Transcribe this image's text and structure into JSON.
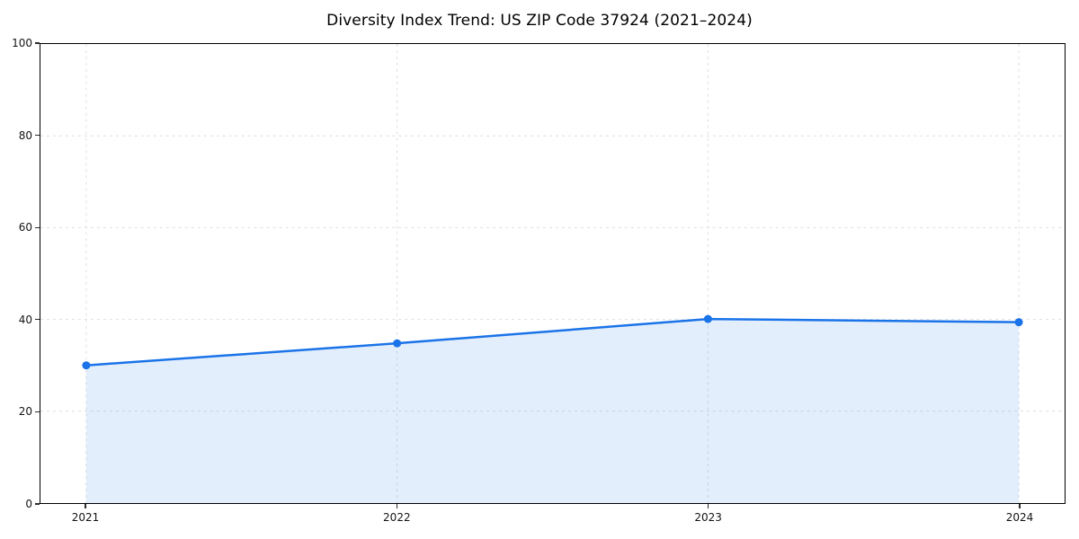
{
  "chart_data": {
    "type": "area",
    "title": "Diversity Index Trend: US ZIP Code 37924 (2021–2024)",
    "series_name": "Diversity Index",
    "categories": [
      "2021",
      "2022",
      "2023",
      "2024"
    ],
    "values": [
      30.0,
      34.8,
      40.1,
      39.4
    ],
    "xlabel": "",
    "ylabel": "",
    "ylim": [
      0,
      100
    ],
    "yticks": [
      0,
      20,
      40,
      60,
      80,
      100
    ],
    "grid": "dashed",
    "legend_position": "none",
    "colors": {
      "line": "#1a73e8",
      "marker": "#1a73e8",
      "fill": "rgba(26,115,232,0.12)",
      "grid": "#dedede",
      "spine": "#000000",
      "tick": "#2b2b2b",
      "tick_label": "#141414",
      "title": "#000000",
      "background": "#ffffff"
    }
  }
}
